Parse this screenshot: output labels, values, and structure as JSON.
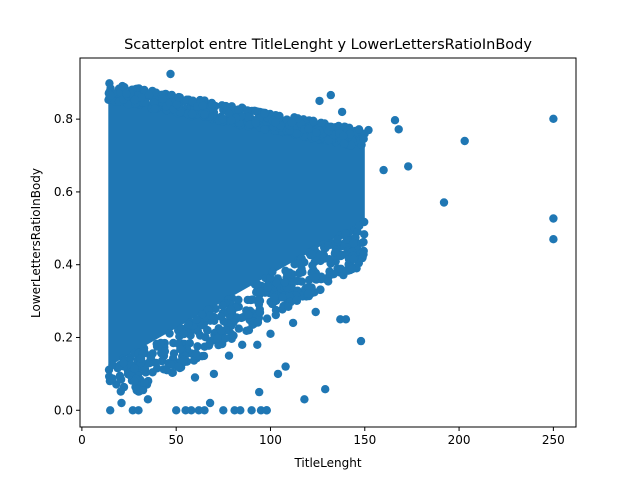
{
  "chart_data": {
    "type": "scatter",
    "title": "Scatterplot entre TitleLenght y LowerLettersRatioInBody",
    "xlabel": "TitleLenght",
    "ylabel": "LowerLettersRatioInBody",
    "xlim": [
      -1,
      262
    ],
    "ylim": [
      -0.046,
      0.968
    ],
    "xticks": [
      0,
      50,
      100,
      150,
      200,
      250
    ],
    "yticks": [
      0.0,
      0.2,
      0.4,
      0.6,
      0.8
    ],
    "xtick_labels": [
      "0",
      "50",
      "100",
      "150",
      "200",
      "250"
    ],
    "ytick_labels": [
      "0.0",
      "0.2",
      "0.4",
      "0.6",
      "0.8"
    ],
    "grid": false,
    "legend": "none",
    "marker_color": "#1f77b4",
    "series": [
      {
        "x": [
          47,
          250,
          250,
          250,
          203,
          192,
          173,
          168,
          166,
          160,
          152,
          148,
          129,
          118,
          50,
          55,
          62,
          75,
          81,
          84,
          95,
          98,
          98,
          15,
          21,
          27,
          30,
          35,
          58,
          65,
          68,
          90,
          94,
          22,
          28,
          45,
          51,
          60,
          70,
          78,
          85,
          93,
          100,
          112,
          120,
          124,
          137,
          140,
          108,
          104,
          101,
          126,
          132,
          138
        ],
        "y": [
          0.924,
          0.801,
          0.527,
          0.47,
          0.74,
          0.571,
          0.67,
          0.772,
          0.797,
          0.66,
          0.77,
          0.19,
          0.058,
          0.03,
          0.0,
          0.0,
          0.0,
          0.0,
          0.0,
          0.0,
          0.0,
          0.0,
          0.0,
          0.0,
          0.02,
          0.0,
          0.0,
          0.03,
          0.0,
          0.0,
          0.02,
          0.0,
          0.05,
          0.13,
          0.08,
          0.11,
          0.12,
          0.09,
          0.1,
          0.15,
          0.18,
          0.18,
          0.21,
          0.24,
          0.32,
          0.27,
          0.25,
          0.25,
          0.12,
          0.1,
          0.38,
          0.85,
          0.866,
          0.82
        ]
      }
    ],
    "dense_regions": [
      {
        "x0": 14,
        "x1": 150,
        "y_lo_at_x0": 0.12,
        "y_lo_at_x1": 0.52,
        "y_hi_at_x0": 0.87,
        "y_hi_at_x1": 0.74
      }
    ]
  }
}
